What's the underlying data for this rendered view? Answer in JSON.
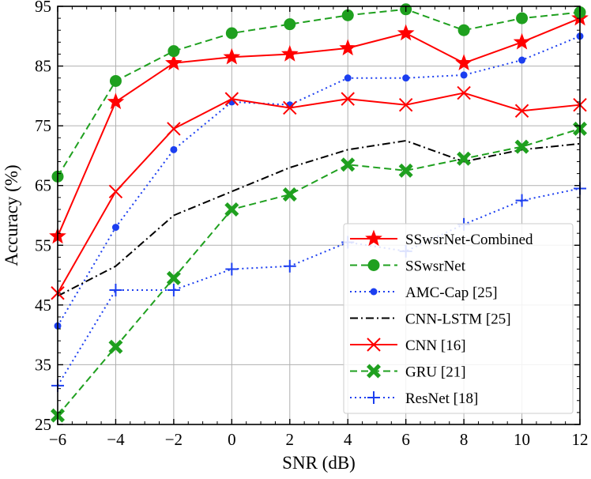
{
  "chart_data": {
    "type": "line",
    "xlabel": "SNR (dB)",
    "ylabel": "Accuracy (%)",
    "xlim": [
      -6,
      12
    ],
    "ylim": [
      25,
      95
    ],
    "xticks": [
      -6,
      -4,
      -2,
      0,
      2,
      4,
      6,
      8,
      10,
      12
    ],
    "yticks": [
      25,
      35,
      45,
      55,
      65,
      75,
      85,
      95
    ],
    "xtick_labels": [
      "−6",
      "−4",
      "−2",
      "0",
      "2",
      "4",
      "6",
      "8",
      "10",
      "12"
    ],
    "ytick_labels": [
      "25",
      "35",
      "45",
      "55",
      "65",
      "75",
      "85",
      "95"
    ],
    "grid": true,
    "legend_position": "bottom-right",
    "x": [
      -6,
      -4,
      -2,
      0,
      2,
      4,
      6,
      8,
      10,
      12
    ],
    "series": [
      {
        "name": "SSwsrNet-Combined",
        "color": "#ff0000",
        "line_style": "solid",
        "marker": "star",
        "values": [
          56.5,
          79,
          85.5,
          86.5,
          87,
          88,
          90.5,
          85.5,
          89,
          93
        ]
      },
      {
        "name": "SSwsrNet",
        "color": "#1fa01f",
        "line_style": "dashed",
        "marker": "circle",
        "values": [
          66.5,
          82.5,
          87.5,
          90.5,
          92,
          93.5,
          94.5,
          91,
          93,
          94
        ]
      },
      {
        "name": "AMC-Cap [25]",
        "color": "#1c3ff0",
        "line_style": "dotted",
        "marker": "dot",
        "values": [
          41.5,
          58,
          71,
          79,
          78.5,
          83,
          83,
          83.5,
          86,
          90
        ]
      },
      {
        "name": "CNN-LSTM [25]",
        "color": "#000000",
        "line_style": "dashdot",
        "marker": "none",
        "values": [
          46.5,
          51.5,
          60,
          64,
          68,
          71,
          72.5,
          69,
          71,
          72
        ]
      },
      {
        "name": "CNN [16]",
        "color": "#ff0000",
        "line_style": "solid",
        "marker": "x",
        "values": [
          47,
          64,
          74.5,
          79.5,
          78,
          79.5,
          78.5,
          80.5,
          77.5,
          78.5
        ]
      },
      {
        "name": "GRU [21]",
        "color": "#1fa01f",
        "line_style": "dashed",
        "marker": "X",
        "values": [
          26.5,
          38,
          49.5,
          61,
          63.5,
          68.5,
          67.5,
          69.5,
          71.5,
          74.5
        ]
      },
      {
        "name": "ResNet [18]",
        "color": "#1c3ff0",
        "line_style": "dotted",
        "marker": "plus",
        "values": [
          31.5,
          47.5,
          47.5,
          51,
          51.5,
          55.5,
          54,
          58.5,
          62.5,
          64.5
        ]
      }
    ]
  }
}
